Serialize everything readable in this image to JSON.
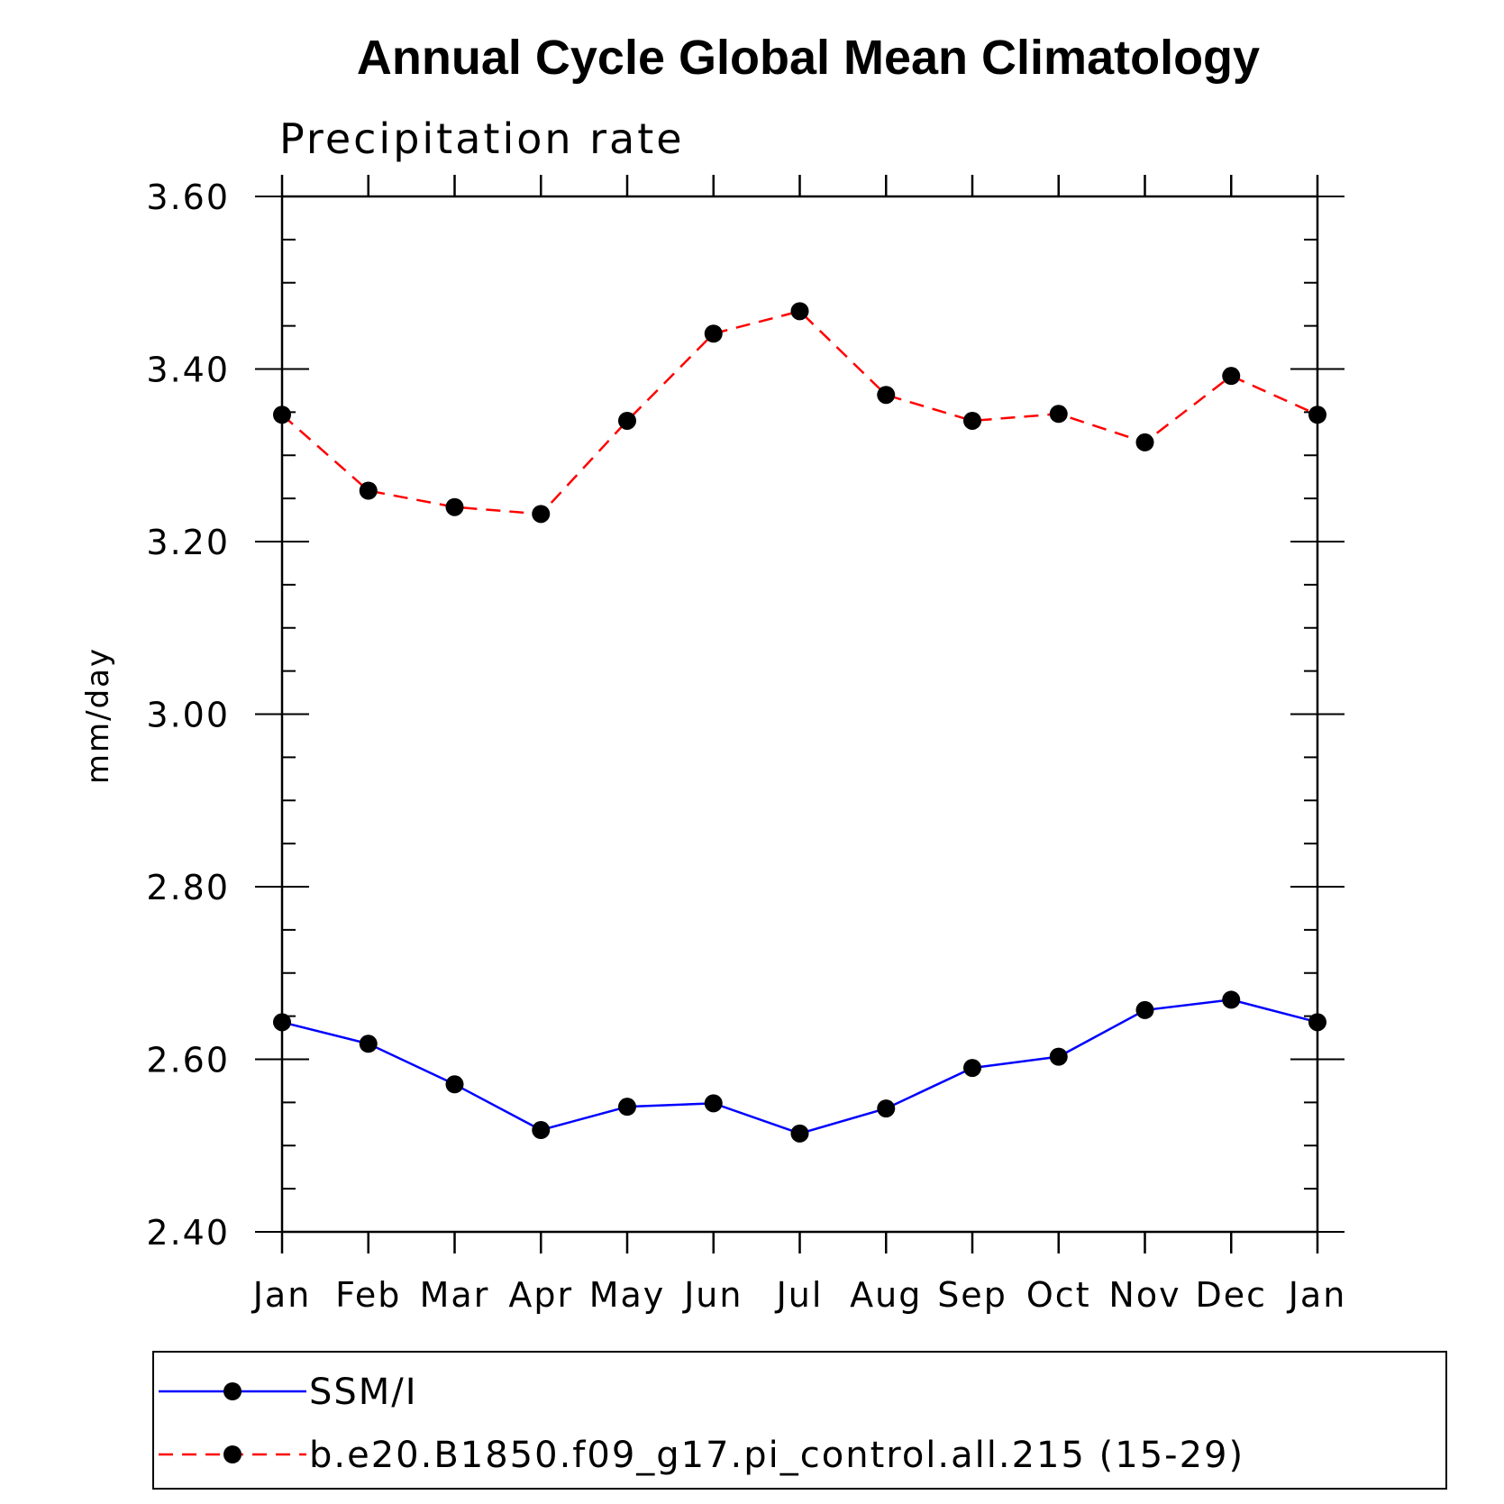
{
  "chart_data": {
    "type": "line",
    "title": "Annual Cycle Global Mean Climatology",
    "subtitle": "Precipitation rate",
    "xlabel": "",
    "ylabel": "mm/day",
    "categories": [
      "Jan",
      "Feb",
      "Mar",
      "Apr",
      "May",
      "Jun",
      "Jul",
      "Aug",
      "Sep",
      "Oct",
      "Nov",
      "Dec",
      "Jan"
    ],
    "ylim": [
      2.4,
      3.6
    ],
    "yticks": [
      "2.40",
      "2.60",
      "2.80",
      "3.00",
      "3.20",
      "3.40",
      "3.60"
    ],
    "grid": false,
    "legend_position": "bottom",
    "series": [
      {
        "name": "SSM/I",
        "color": "#0000ff",
        "line_style": "solid",
        "marker": "filled-circle",
        "values": [
          2.643,
          2.618,
          2.571,
          2.518,
          2.545,
          2.549,
          2.514,
          2.543,
          2.59,
          2.603,
          2.657,
          2.669,
          2.643
        ]
      },
      {
        "name": "b.e20.B1850.f09_g17.pi_control.all.215 (15-29)",
        "color": "#ff0000",
        "line_style": "dashed",
        "marker": "filled-circle",
        "values": [
          3.347,
          3.259,
          3.24,
          3.232,
          3.34,
          3.441,
          3.467,
          3.37,
          3.34,
          3.348,
          3.315,
          3.392,
          3.347
        ]
      }
    ]
  }
}
